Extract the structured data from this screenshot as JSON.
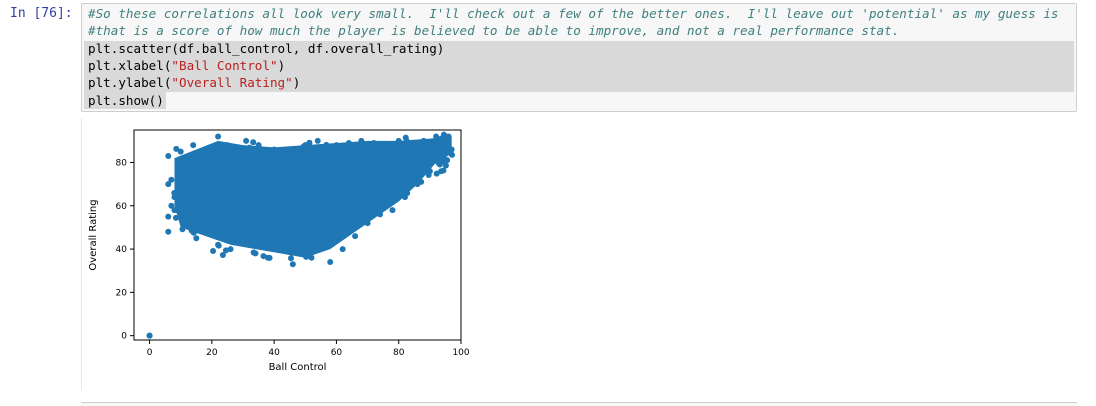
{
  "cell": {
    "prompt": "In [76]:",
    "lines": [
      {
        "kind": "comment",
        "text": "#So these correlations all look very small.  I'll check out a few of the better ones.  I'll leave out 'potential' as my guess is"
      },
      {
        "kind": "comment",
        "text": "#that is a score of how much the player is believed to be able to improve, and not a real performance stat."
      },
      {
        "kind": "code",
        "text": "plt.scatter(df.ball_control, df.overall_rating)"
      },
      {
        "kind": "code_str",
        "pre": "plt.xlabel(",
        "str": "\"Ball Control\"",
        "post": ")"
      },
      {
        "kind": "code_str",
        "pre": "plt.ylabel(",
        "str": "\"Overall Rating\"",
        "post": ")"
      },
      {
        "kind": "code",
        "text": "plt.show()"
      }
    ]
  },
  "chart_data": {
    "type": "scatter",
    "xlabel": "Ball Control",
    "ylabel": "Overall Rating",
    "xlim": [
      -5,
      100
    ],
    "ylim": [
      -2,
      95
    ],
    "xticks": [
      0,
      20,
      40,
      60,
      80,
      100
    ],
    "yticks": [
      0,
      20,
      40,
      60,
      80
    ],
    "marker_color": "#1f77b4",
    "points": [
      [
        0,
        0
      ],
      [
        0,
        0
      ],
      [
        6,
        83
      ],
      [
        6,
        70
      ],
      [
        6,
        55
      ],
      [
        6,
        48
      ],
      [
        7,
        60
      ],
      [
        7,
        72
      ],
      [
        8,
        64
      ],
      [
        8,
        58
      ],
      [
        10,
        85
      ],
      [
        12,
        80
      ],
      [
        14,
        88
      ],
      [
        15,
        45
      ],
      [
        16,
        78
      ],
      [
        18,
        50
      ],
      [
        20,
        84
      ],
      [
        22,
        92
      ],
      [
        22,
        42
      ],
      [
        25,
        88
      ],
      [
        26,
        40
      ],
      [
        28,
        86
      ],
      [
        30,
        44
      ],
      [
        31,
        90
      ],
      [
        34,
        38
      ],
      [
        35,
        88
      ],
      [
        38,
        36
      ],
      [
        40,
        86
      ],
      [
        42,
        40
      ],
      [
        44,
        84
      ],
      [
        46,
        33
      ],
      [
        47,
        86
      ],
      [
        48,
        38
      ],
      [
        50,
        88
      ],
      [
        52,
        36
      ],
      [
        54,
        90
      ],
      [
        56,
        42
      ],
      [
        58,
        34
      ],
      [
        60,
        88
      ],
      [
        62,
        40
      ],
      [
        64,
        89
      ],
      [
        66,
        46
      ],
      [
        68,
        90
      ],
      [
        70,
        52
      ],
      [
        72,
        89
      ],
      [
        74,
        56
      ],
      [
        76,
        88
      ],
      [
        78,
        58
      ],
      [
        80,
        90
      ],
      [
        82,
        64
      ],
      [
        84,
        88
      ],
      [
        86,
        70
      ],
      [
        88,
        90
      ],
      [
        90,
        76
      ],
      [
        92,
        92
      ],
      [
        94,
        88
      ],
      [
        96,
        92
      ],
      [
        97,
        86
      ],
      [
        30,
        60
      ],
      [
        40,
        62
      ],
      [
        50,
        58
      ],
      [
        60,
        64
      ],
      [
        70,
        70
      ],
      [
        20,
        66
      ],
      [
        10,
        62
      ],
      [
        85,
        80
      ],
      [
        75,
        76
      ],
      [
        65,
        72
      ],
      [
        55,
        66
      ],
      [
        45,
        60
      ],
      [
        35,
        62
      ],
      [
        25,
        64
      ]
    ]
  }
}
